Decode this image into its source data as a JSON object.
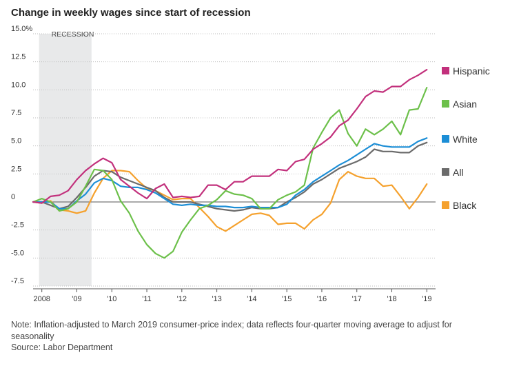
{
  "title": "Change in weekly wages since start of recession",
  "note": "Note: Inflation-adjusted to March 2019 consumer-price index; data reflects four-quarter moving average to adjust for seasonality",
  "source": "Source: Labor Department",
  "chart_data": {
    "type": "line",
    "title": "Change in weekly wages since start of recession",
    "xlabel": "",
    "ylabel": "",
    "xlim": [
      2007.75,
      2019.25
    ],
    "ylim": [
      -7.5,
      15.0
    ],
    "y_ticks": [
      15.0,
      12.5,
      10.0,
      7.5,
      5.0,
      2.5,
      0,
      -2.5,
      -5.0,
      -7.5
    ],
    "y_tick_labels": [
      "15.0%",
      "12.5",
      "10.0",
      "7.5",
      "5.0",
      "2.5",
      "0",
      "-2.5",
      "-5.0",
      "-7.5"
    ],
    "x_ticks": [
      2008,
      2009,
      2010,
      2011,
      2012,
      2013,
      2014,
      2015,
      2016,
      2017,
      2018,
      2019
    ],
    "x_tick_labels": [
      "2008",
      "'09",
      "'10",
      "'11",
      "'12",
      "'13",
      "'14",
      "'15",
      "'16",
      "'17",
      "'18",
      "'19"
    ],
    "shaded_region": {
      "label": "RECESSION",
      "x_start": 2007.92,
      "x_end": 2009.42
    },
    "x": [
      2007.75,
      2008.0,
      2008.25,
      2008.5,
      2008.75,
      2009.0,
      2009.25,
      2009.5,
      2009.75,
      2010.0,
      2010.25,
      2010.5,
      2010.75,
      2011.0,
      2011.25,
      2011.5,
      2011.75,
      2012.0,
      2012.25,
      2012.5,
      2012.75,
      2013.0,
      2013.25,
      2013.5,
      2013.75,
      2014.0,
      2014.25,
      2014.5,
      2014.75,
      2015.0,
      2015.25,
      2015.5,
      2015.75,
      2016.0,
      2016.25,
      2016.5,
      2016.75,
      2017.0,
      2017.25,
      2017.5,
      2017.75,
      2018.0,
      2018.25,
      2018.5,
      2018.75,
      2019.0
    ],
    "series": [
      {
        "name": "Hispanic",
        "color": "#c2307c",
        "values": [
          0.0,
          -0.1,
          0.5,
          0.6,
          1.0,
          2.0,
          2.8,
          3.4,
          3.9,
          3.5,
          2.0,
          1.4,
          0.8,
          0.3,
          1.2,
          1.6,
          0.4,
          0.5,
          0.4,
          0.5,
          1.5,
          1.5,
          1.1,
          1.8,
          1.8,
          2.3,
          2.3,
          2.3,
          2.9,
          2.8,
          3.6,
          3.8,
          4.7,
          5.2,
          5.8,
          6.8,
          7.3,
          8.3,
          9.4,
          9.9,
          9.8,
          10.3,
          10.3,
          10.9,
          11.3,
          11.8
        ]
      },
      {
        "name": "Asian",
        "color": "#6cc04a",
        "values": [
          0.0,
          0.3,
          0.0,
          -0.8,
          -0.6,
          0.0,
          1.4,
          2.9,
          2.8,
          2.0,
          0.1,
          -1.0,
          -2.6,
          -3.8,
          -4.6,
          -5.0,
          -4.4,
          -2.7,
          -1.6,
          -0.6,
          -0.3,
          0.2,
          1.0,
          0.7,
          0.6,
          0.3,
          -0.6,
          -0.6,
          0.2,
          0.6,
          0.9,
          1.5,
          4.8,
          6.2,
          7.5,
          8.2,
          6.1,
          5.0,
          6.5,
          6.0,
          6.5,
          7.2,
          6.0,
          8.2,
          8.3,
          10.2
        ]
      },
      {
        "name": "White",
        "color": "#1c8ed6",
        "values": [
          0.0,
          0.0,
          0.0,
          -0.6,
          -0.6,
          0.1,
          0.7,
          1.7,
          2.1,
          1.9,
          1.4,
          1.3,
          1.3,
          1.1,
          0.8,
          0.3,
          -0.2,
          -0.3,
          -0.2,
          -0.3,
          -0.3,
          -0.4,
          -0.4,
          -0.5,
          -0.5,
          -0.4,
          -0.5,
          -0.5,
          -0.5,
          -0.2,
          0.6,
          1.1,
          1.8,
          2.3,
          2.8,
          3.3,
          3.7,
          4.2,
          4.7,
          5.2,
          5.0,
          4.9,
          4.9,
          4.9,
          5.4,
          5.7
        ]
      },
      {
        "name": "All",
        "color": "#6b6b6b",
        "values": [
          0.0,
          0.0,
          -0.3,
          -0.6,
          -0.4,
          0.4,
          1.3,
          2.3,
          2.8,
          2.7,
          2.2,
          1.9,
          1.6,
          1.3,
          1.0,
          0.4,
          0.0,
          0.0,
          0.0,
          -0.2,
          -0.4,
          -0.6,
          -0.7,
          -0.8,
          -0.7,
          -0.5,
          -0.6,
          -0.6,
          -0.5,
          0.0,
          0.4,
          0.9,
          1.6,
          2.0,
          2.5,
          3.0,
          3.3,
          3.6,
          4.0,
          4.7,
          4.5,
          4.5,
          4.4,
          4.4,
          5.0,
          5.3
        ]
      },
      {
        "name": "Black",
        "color": "#f5a12d",
        "values": [
          0.0,
          -0.1,
          0.1,
          -0.7,
          -0.8,
          -1.0,
          -0.8,
          0.8,
          2.1,
          2.8,
          2.8,
          2.7,
          1.9,
          1.2,
          1.0,
          0.6,
          0.2,
          0.3,
          0.3,
          -0.5,
          -1.3,
          -2.2,
          -2.6,
          -2.1,
          -1.6,
          -1.1,
          -1.0,
          -1.2,
          -2.0,
          -1.9,
          -1.9,
          -2.4,
          -1.6,
          -1.1,
          -0.1,
          2.0,
          2.7,
          2.3,
          2.1,
          2.1,
          1.4,
          1.5,
          0.5,
          -0.6,
          0.4,
          1.6
        ]
      }
    ]
  }
}
